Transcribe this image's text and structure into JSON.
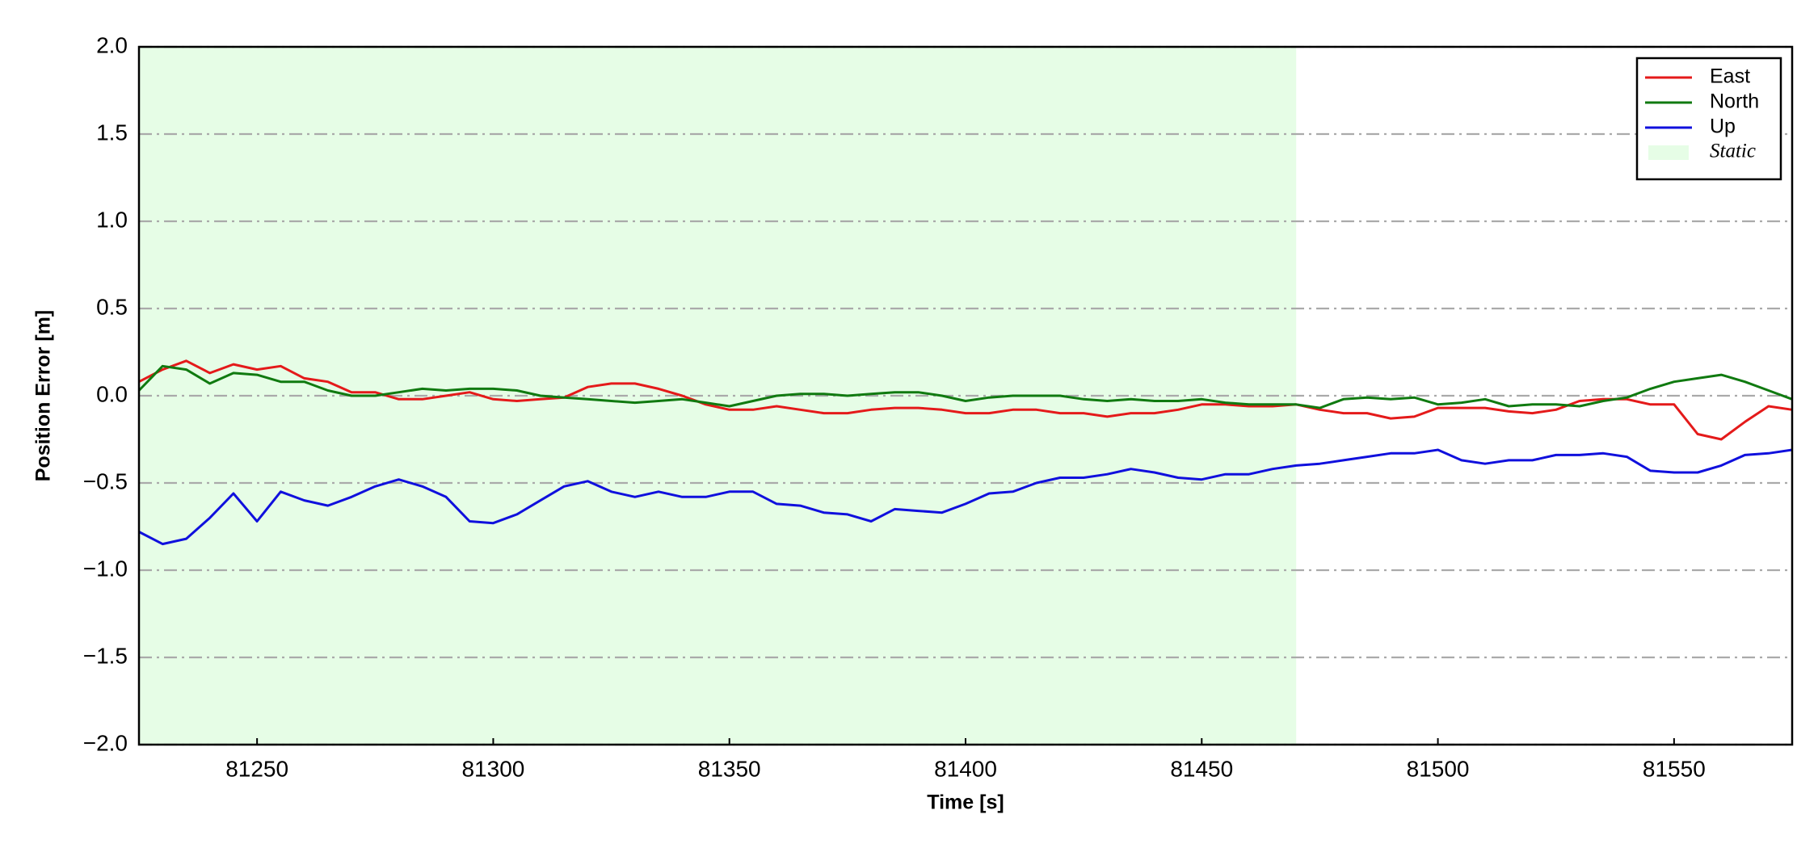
{
  "chart_data": {
    "type": "line",
    "xlabel": "Time [s]",
    "ylabel": "Position Error [m]",
    "xlim": [
      81225,
      81575
    ],
    "xticks": [
      81250,
      81300,
      81350,
      81400,
      81450,
      81500,
      81550
    ],
    "ylim": [
      -2,
      2
    ],
    "yticks": [
      {
        "value": -2,
        "label": "−2.0"
      },
      {
        "value": -1.5,
        "label": "−1.5"
      },
      {
        "value": -1,
        "label": "−1.0"
      },
      {
        "value": -0.5,
        "label": "−0.5"
      },
      {
        "value": 0,
        "label": "0.0"
      },
      {
        "value": 0.5,
        "label": "0.5"
      },
      {
        "value": 1,
        "label": "1.0"
      },
      {
        "value": 1.5,
        "label": "1.5"
      },
      {
        "value": 2,
        "label": "2.0"
      }
    ],
    "grid": "y",
    "legend": "upper right",
    "shaded_regions": [
      {
        "name": "Static",
        "x0": 81225,
        "x1": 81470,
        "color": "#e6fde6"
      }
    ],
    "x": [
      81225,
      81230,
      81235,
      81240,
      81245,
      81250,
      81255,
      81260,
      81265,
      81270,
      81275,
      81280,
      81285,
      81290,
      81295,
      81300,
      81305,
      81310,
      81315,
      81320,
      81325,
      81330,
      81335,
      81340,
      81345,
      81350,
      81355,
      81360,
      81365,
      81370,
      81375,
      81380,
      81385,
      81390,
      81395,
      81400,
      81405,
      81410,
      81415,
      81420,
      81425,
      81430,
      81435,
      81440,
      81445,
      81450,
      81455,
      81460,
      81465,
      81470,
      81475,
      81480,
      81485,
      81490,
      81495,
      81500,
      81505,
      81510,
      81515,
      81520,
      81525,
      81530,
      81535,
      81540,
      81545,
      81550,
      81555,
      81560,
      81565,
      81570,
      81575
    ],
    "series": [
      {
        "name": "East",
        "color": "#e41a1a",
        "values": [
          0.08,
          0.15,
          0.2,
          0.13,
          0.18,
          0.15,
          0.17,
          0.1,
          0.08,
          0.02,
          0.02,
          -0.02,
          -0.02,
          0.0,
          0.02,
          -0.02,
          -0.03,
          -0.02,
          -0.01,
          0.05,
          0.07,
          0.07,
          0.04,
          0.0,
          -0.05,
          -0.08,
          -0.08,
          -0.06,
          -0.08,
          -0.1,
          -0.1,
          -0.08,
          -0.07,
          -0.07,
          -0.08,
          -0.1,
          -0.1,
          -0.08,
          -0.08,
          -0.1,
          -0.1,
          -0.12,
          -0.1,
          -0.1,
          -0.08,
          -0.05,
          -0.05,
          -0.06,
          -0.06,
          -0.05,
          -0.08,
          -0.1,
          -0.1,
          -0.13,
          -0.12,
          -0.07,
          -0.07,
          -0.07,
          -0.09,
          -0.1,
          -0.08,
          -0.03,
          -0.02,
          -0.02,
          -0.05,
          -0.05,
          -0.22,
          -0.25,
          -0.15,
          -0.06,
          -0.08
        ]
      },
      {
        "name": "North",
        "color": "#107a10",
        "values": [
          0.03,
          0.17,
          0.15,
          0.07,
          0.13,
          0.12,
          0.08,
          0.08,
          0.03,
          0.0,
          0.0,
          0.02,
          0.04,
          0.03,
          0.04,
          0.04,
          0.03,
          0.0,
          -0.01,
          -0.02,
          -0.03,
          -0.04,
          -0.03,
          -0.02,
          -0.04,
          -0.06,
          -0.03,
          0.0,
          0.01,
          0.01,
          0.0,
          0.01,
          0.02,
          0.02,
          0.0,
          -0.03,
          -0.01,
          0.0,
          0.0,
          0.0,
          -0.02,
          -0.03,
          -0.02,
          -0.03,
          -0.03,
          -0.02,
          -0.04,
          -0.05,
          -0.05,
          -0.05,
          -0.07,
          -0.02,
          -0.01,
          -0.02,
          -0.01,
          -0.05,
          -0.04,
          -0.02,
          -0.06,
          -0.05,
          -0.05,
          -0.06,
          -0.03,
          -0.01,
          0.04,
          0.08,
          0.1,
          0.12,
          0.08,
          0.03,
          -0.02
        ]
      },
      {
        "name": "Up",
        "color": "#1010dd",
        "values": [
          -0.78,
          -0.85,
          -0.82,
          -0.7,
          -0.56,
          -0.72,
          -0.55,
          -0.6,
          -0.63,
          -0.58,
          -0.52,
          -0.48,
          -0.52,
          -0.58,
          -0.72,
          -0.73,
          -0.68,
          -0.6,
          -0.52,
          -0.49,
          -0.55,
          -0.58,
          -0.55,
          -0.58,
          -0.58,
          -0.55,
          -0.55,
          -0.62,
          -0.63,
          -0.67,
          -0.68,
          -0.72,
          -0.65,
          -0.66,
          -0.67,
          -0.62,
          -0.56,
          -0.55,
          -0.5,
          -0.47,
          -0.47,
          -0.45,
          -0.42,
          -0.44,
          -0.47,
          -0.48,
          -0.45,
          -0.45,
          -0.42,
          -0.4,
          -0.39,
          -0.37,
          -0.35,
          -0.33,
          -0.33,
          -0.31,
          -0.37,
          -0.39,
          -0.37,
          -0.37,
          -0.34,
          -0.34,
          -0.33,
          -0.35,
          -0.43,
          -0.44,
          -0.44,
          -0.4,
          -0.34,
          -0.33,
          -0.31
        ]
      }
    ]
  }
}
